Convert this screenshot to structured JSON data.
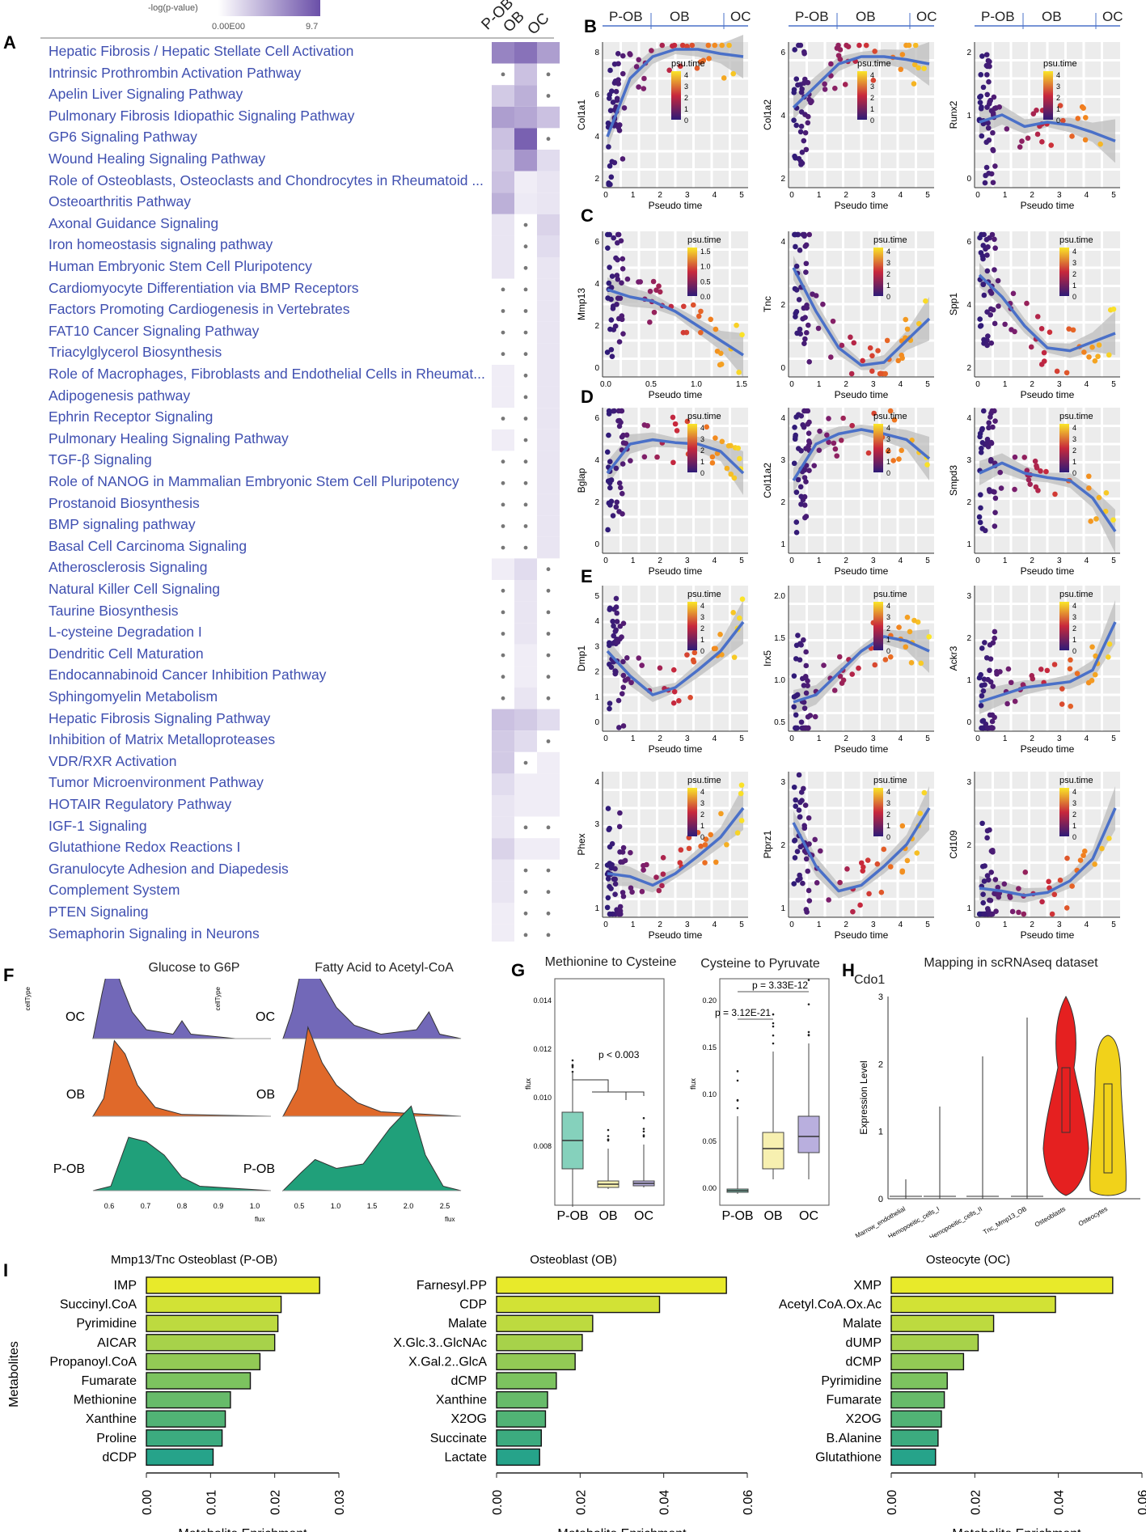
{
  "colors": {
    "purple_dark": "#6a4fa8",
    "purple_light": "#f1ecf7",
    "link": "#3f4fb0",
    "trend": "#4a70c8",
    "band": "#c9c9c9",
    "oc": "#7268b8",
    "ob": "#e0692a",
    "pob": "#20a07a",
    "bar_yellow": "#e8ea2a",
    "bar_green": "#26a38a",
    "violin_red": "#e52020",
    "violin_yellow": "#f1d21a"
  },
  "panel_a": {
    "letter": "A",
    "scale_title": "-log(p-value)",
    "scale_min": "0.00E00",
    "scale_max": "9.7",
    "columns": [
      "P-OB",
      "OB",
      "OC"
    ],
    "pathways": [
      {
        "name": "Hepatic Fibrosis / Hepatic Stellate Cell Activation",
        "v": [
          0.7,
          0.8,
          0.55
        ],
        "dot": [
          0,
          0,
          0
        ]
      },
      {
        "name": "Intrinsic Prothrombin Activation Pathway",
        "v": [
          0,
          0.35,
          0
        ],
        "dot": [
          1,
          0,
          1
        ]
      },
      {
        "name": "Apelin Liver Signaling Pathway",
        "v": [
          0.3,
          0.45,
          0
        ],
        "dot": [
          0,
          0,
          1
        ]
      },
      {
        "name": "Pulmonary Fibrosis Idiopathic Signaling Pathway",
        "v": [
          0.55,
          0.5,
          0.35
        ],
        "dot": [
          0,
          0,
          0
        ]
      },
      {
        "name": "GP6 Signaling Pathway",
        "v": [
          0.35,
          0.9,
          0
        ],
        "dot": [
          0,
          0,
          1
        ]
      },
      {
        "name": "Wound Healing Signaling Pathway",
        "v": [
          0.3,
          0.6,
          0.2
        ],
        "dot": [
          0,
          0,
          0
        ]
      },
      {
        "name": "Role of Osteoblasts, Osteoclasts and Chondrocytes in Rheumatoid ...",
        "v": [
          0.35,
          0.1,
          0.15
        ],
        "dot": [
          0,
          0,
          0
        ]
      },
      {
        "name": "Osteoarthritis Pathway",
        "v": [
          0.45,
          0.12,
          0.15
        ],
        "dot": [
          0,
          0,
          0
        ]
      },
      {
        "name": "Axonal Guidance Signaling",
        "v": [
          0.15,
          0,
          0.25
        ],
        "dot": [
          0,
          1,
          0
        ]
      },
      {
        "name": "Iron homeostasis signaling pathway",
        "v": [
          0.15,
          0,
          0.2
        ],
        "dot": [
          0,
          1,
          0
        ]
      },
      {
        "name": "Human Embryonic Stem Cell Pluripotency",
        "v": [
          0.15,
          0,
          0.15
        ],
        "dot": [
          0,
          1,
          0
        ]
      },
      {
        "name": "Cardiomyocyte Differentiation via BMP Receptors",
        "v": [
          0,
          0,
          0.15
        ],
        "dot": [
          1,
          1,
          0
        ]
      },
      {
        "name": "Factors Promoting Cardiogenesis in Vertebrates",
        "v": [
          0,
          0,
          0.15
        ],
        "dot": [
          1,
          1,
          0
        ]
      },
      {
        "name": "FAT10 Cancer Signaling Pathway",
        "v": [
          0,
          0,
          0.15
        ],
        "dot": [
          1,
          1,
          0
        ]
      },
      {
        "name": "Triacylglycerol Biosynthesis",
        "v": [
          0,
          0,
          0.15
        ],
        "dot": [
          1,
          1,
          0
        ]
      },
      {
        "name": "Role of Macrophages, Fibroblasts and Endothelial Cells in Rheumat...",
        "v": [
          0.1,
          0,
          0.15
        ],
        "dot": [
          0,
          1,
          0
        ]
      },
      {
        "name": "Adipogenesis pathway",
        "v": [
          0.1,
          0,
          0.15
        ],
        "dot": [
          0,
          1,
          0
        ]
      },
      {
        "name": "Ephrin Receptor Signaling",
        "v": [
          0,
          0,
          0.15
        ],
        "dot": [
          1,
          1,
          0
        ]
      },
      {
        "name": "Pulmonary Healing Signaling Pathway",
        "v": [
          0.1,
          0,
          0.15
        ],
        "dot": [
          0,
          1,
          0
        ]
      },
      {
        "name": "TGF-β Signaling",
        "v": [
          0,
          0,
          0.15
        ],
        "dot": [
          1,
          1,
          0
        ]
      },
      {
        "name": "Role of NANOG in Mammalian Embryonic Stem Cell Pluripotency",
        "v": [
          0,
          0,
          0.15
        ],
        "dot": [
          1,
          1,
          0
        ]
      },
      {
        "name": "Prostanoid Biosynthesis",
        "v": [
          0,
          0,
          0.15
        ],
        "dot": [
          1,
          1,
          0
        ]
      },
      {
        "name": "BMP signaling pathway",
        "v": [
          0,
          0,
          0.15
        ],
        "dot": [
          1,
          1,
          0
        ]
      },
      {
        "name": "Basal Cell Carcinoma Signaling",
        "v": [
          0,
          0,
          0.15
        ],
        "dot": [
          1,
          1,
          0
        ]
      },
      {
        "name": "Atherosclerosis Signaling",
        "v": [
          0.1,
          0.2,
          0
        ],
        "dot": [
          0,
          0,
          1
        ]
      },
      {
        "name": "Natural Killer Cell Signaling",
        "v": [
          0,
          0.15,
          0
        ],
        "dot": [
          1,
          0,
          1
        ]
      },
      {
        "name": "Taurine Biosynthesis",
        "v": [
          0,
          0.15,
          0
        ],
        "dot": [
          1,
          0,
          1
        ]
      },
      {
        "name": "L-cysteine Degradation I",
        "v": [
          0,
          0.15,
          0
        ],
        "dot": [
          1,
          0,
          1
        ]
      },
      {
        "name": "Dendritic Cell Maturation",
        "v": [
          0,
          0.1,
          0
        ],
        "dot": [
          1,
          0,
          1
        ]
      },
      {
        "name": "Endocannabinoid Cancer Inhibition Pathway",
        "v": [
          0,
          0.1,
          0
        ],
        "dot": [
          1,
          0,
          1
        ]
      },
      {
        "name": "Sphingomyelin Metabolism",
        "v": [
          0,
          0.15,
          0
        ],
        "dot": [
          1,
          0,
          1
        ]
      },
      {
        "name": "Hepatic Fibrosis Signaling Pathway",
        "v": [
          0.35,
          0.3,
          0.2
        ],
        "dot": [
          0,
          0,
          0
        ]
      },
      {
        "name": "Inhibition of Matrix Metalloproteases",
        "v": [
          0.3,
          0.2,
          0
        ],
        "dot": [
          0,
          0,
          1
        ]
      },
      {
        "name": "VDR/RXR Activation",
        "v": [
          0.3,
          0,
          0.1
        ],
        "dot": [
          0,
          1,
          0
        ]
      },
      {
        "name": "Tumor Microenvironment Pathway",
        "v": [
          0.2,
          0.1,
          0.1
        ],
        "dot": [
          0,
          0,
          0
        ]
      },
      {
        "name": "HOTAIR Regulatory Pathway",
        "v": [
          0.15,
          0.1,
          0.1
        ],
        "dot": [
          0,
          0,
          0
        ]
      },
      {
        "name": "IGF-1 Signaling",
        "v": [
          0.15,
          0,
          0
        ],
        "dot": [
          0,
          1,
          1
        ]
      },
      {
        "name": "Glutathione Redox Reactions I",
        "v": [
          0.25,
          0.1,
          0.1
        ],
        "dot": [
          0,
          0,
          0
        ]
      },
      {
        "name": "Granulocyte Adhesion and Diapedesis",
        "v": [
          0.15,
          0,
          0
        ],
        "dot": [
          0,
          1,
          1
        ]
      },
      {
        "name": "Complement System",
        "v": [
          0.15,
          0,
          0
        ],
        "dot": [
          0,
          1,
          1
        ]
      },
      {
        "name": "PTEN Signaling",
        "v": [
          0.1,
          0,
          0
        ],
        "dot": [
          0,
          1,
          1
        ]
      },
      {
        "name": "Semaphorin Signaling in Neurons",
        "v": [
          0.1,
          0,
          0
        ],
        "dot": [
          0,
          1,
          1
        ]
      }
    ]
  },
  "panel_b_e": {
    "letters": [
      "B",
      "C",
      "D",
      "E"
    ],
    "stage_labels": [
      "P-OB",
      "OB",
      "OC"
    ],
    "xlabel": "Pseudo time",
    "legend_title": "psu.time",
    "legend_ticks": [
      "4",
      "3",
      "2",
      "1",
      "0"
    ],
    "legend_ticks_c1": [
      "1.5",
      "1.0",
      "0.5",
      "0.0"
    ],
    "rows": [
      [
        {
          "gene": "Col1a1",
          "yticks": [
            "8",
            "6",
            "4",
            "2"
          ],
          "xticks": [
            "0",
            "1",
            "2",
            "3",
            "4",
            "5"
          ]
        },
        {
          "gene": "Col1a2",
          "yticks": [
            "6",
            "4",
            "2"
          ],
          "xticks": [
            "0",
            "1",
            "2",
            "3",
            "4",
            "5"
          ]
        },
        {
          "gene": "Runx2",
          "yticks": [
            "2",
            "1",
            "0"
          ],
          "xticks": [
            "0",
            "1",
            "2",
            "3",
            "4",
            "5"
          ]
        }
      ],
      [
        {
          "gene": "Mmp13",
          "yticks": [
            "6",
            "4",
            "2",
            "0"
          ],
          "xticks": [
            "0.0",
            "0.5",
            "1.0",
            "1.5"
          ]
        },
        {
          "gene": "Tnc",
          "yticks": [
            "4",
            "2",
            "0"
          ],
          "xticks": [
            "0",
            "1",
            "2",
            "3",
            "4",
            "5"
          ]
        },
        {
          "gene": "Spp1",
          "yticks": [
            "6",
            "4",
            "2"
          ],
          "xticks": [
            "0",
            "1",
            "2",
            "3",
            "4",
            "5"
          ]
        }
      ],
      [
        {
          "gene": "Bglap",
          "yticks": [
            "6",
            "4",
            "2",
            "0"
          ],
          "xticks": [
            "0",
            "1",
            "2",
            "3",
            "4",
            "5"
          ]
        },
        {
          "gene": "Col11a2",
          "yticks": [
            "4",
            "3",
            "2",
            "1"
          ],
          "xticks": [
            "0",
            "1",
            "2",
            "3",
            "4",
            "5"
          ]
        },
        {
          "gene": "Smpd3",
          "yticks": [
            "4",
            "3",
            "2",
            "1"
          ],
          "xticks": [
            "0",
            "1",
            "2",
            "3",
            "4",
            "5"
          ]
        }
      ],
      [
        {
          "gene": "Dmp1",
          "yticks": [
            "5",
            "4",
            "3",
            "2",
            "1",
            "0"
          ],
          "xticks": [
            "0",
            "1",
            "2",
            "3",
            "4",
            "5"
          ]
        },
        {
          "gene": "Irx5",
          "yticks": [
            "2.0",
            "1.5",
            "1.0",
            "0.5"
          ],
          "xticks": [
            "0",
            "1",
            "2",
            "3",
            "4",
            "5"
          ]
        },
        {
          "gene": "Ackr3",
          "yticks": [
            "3",
            "2",
            "1",
            "0"
          ],
          "xticks": [
            "0",
            "1",
            "2",
            "3",
            "4",
            "5"
          ]
        }
      ],
      [
        {
          "gene": "Phex",
          "yticks": [
            "4",
            "3",
            "2",
            "1"
          ],
          "xticks": [
            "0",
            "1",
            "2",
            "3",
            "4",
            "5"
          ]
        },
        {
          "gene": "Ptprz1",
          "yticks": [
            "3",
            "2",
            "1"
          ],
          "xticks": [
            "0",
            "1",
            "2",
            "3",
            "4",
            "5"
          ]
        },
        {
          "gene": "Cd109",
          "yticks": [
            "3",
            "2",
            "1"
          ],
          "xticks": [
            "0",
            "1",
            "2",
            "3",
            "4",
            "5"
          ]
        }
      ]
    ]
  },
  "panel_f": {
    "letter": "F",
    "titles": [
      "Glucose to G6P",
      "Fatty Acid to Acetyl-CoA"
    ],
    "groups": [
      "OC",
      "OB",
      "P-OB"
    ],
    "ylabel": "cellType",
    "xlabel": "flux",
    "xticks_1": [
      "0.6",
      "0.7",
      "0.8",
      "0.9",
      "1.0"
    ],
    "xticks_2": [
      "0.5",
      "1.0",
      "1.5",
      "2.0",
      "2.5"
    ]
  },
  "panel_g": {
    "letter": "G",
    "titles": [
      "Methionine to Cysteine",
      "Cysteine to Pyruvate"
    ],
    "ylabel": "flux",
    "groups": [
      "P-OB",
      "OB",
      "OC"
    ],
    "pvalue_1": "p < 0.003",
    "pvalue_2a": "p = 3.33E-12",
    "pvalue_2b": "p = 3.12E-21",
    "yticks_1": [
      "0.014",
      "0.012",
      "0.010",
      "0.008"
    ],
    "yticks_2": [
      "0.20",
      "0.15",
      "0.10",
      "0.05",
      "0.00"
    ]
  },
  "panel_h": {
    "letter": "H",
    "title": "Mapping in scRNAseq dataset",
    "gene": "Cdo1",
    "ylabel": "Expression Level",
    "yticks": [
      "3",
      "2",
      "1",
      "0"
    ],
    "categories": [
      "Marrow_endothelial",
      "Hemopoeitic_cells_I",
      "Hemopoeitic_cells_II",
      "Tnc_Mmp13_OB",
      "Osteoblasts",
      "Osteocytes"
    ]
  },
  "chart_data": [
    {
      "type": "bar",
      "title": "Mmp13/Tnc Osteoblast (P-OB)",
      "xlabel": "Metabolite Enrichment",
      "ylabel": "Metabolites",
      "categories": [
        "IMP",
        "Succinyl.CoA",
        "Pyrimidine",
        "AICAR",
        "Propanoyl.CoA",
        "Fumarate",
        "Methionine",
        "Xanthine",
        "Proline",
        "dCDP"
      ],
      "values": [
        0.027,
        0.021,
        0.0205,
        0.02,
        0.0177,
        0.0162,
        0.0131,
        0.0123,
        0.0118,
        0.0104
      ],
      "xlim": [
        0,
        0.03
      ],
      "xticks": [
        "0.00",
        "0.01",
        "0.02",
        "0.03"
      ]
    },
    {
      "type": "bar",
      "title": "Osteoblast (OB)",
      "xlabel": "Metabolite Enrichment",
      "ylabel": "",
      "categories": [
        "Farnesyl.PP",
        "CDP",
        "Malate",
        "X.Glc.3..GlcNAc",
        "X.Gal.2..GlcA",
        "dCMP",
        "Xanthine",
        "X2OG",
        "Succinate",
        "Lactate"
      ],
      "values": [
        0.055,
        0.039,
        0.023,
        0.0205,
        0.0188,
        0.0143,
        0.0122,
        0.0117,
        0.0107,
        0.0103
      ],
      "xlim": [
        0,
        0.06
      ],
      "xticks": [
        "0.00",
        "0.02",
        "0.04",
        "0.06"
      ]
    },
    {
      "type": "bar",
      "title": "Osteocyte (OC)",
      "xlabel": "Metabolite Enrichment",
      "ylabel": "",
      "categories": [
        "XMP",
        "Acetyl.CoA.Ox.Ac",
        "Malate",
        "dUMP",
        "dCMP",
        "Pyrimidine",
        "Fumarate",
        "X2OG",
        "B.Alanine",
        "Glutathione"
      ],
      "values": [
        0.053,
        0.0393,
        0.0245,
        0.0208,
        0.0173,
        0.0134,
        0.0127,
        0.012,
        0.0112,
        0.0106
      ],
      "xlim": [
        0,
        0.06
      ],
      "xticks": [
        "0.00",
        "0.02",
        "0.04",
        "0.06"
      ]
    }
  ],
  "panel_i": {
    "letter": "I"
  }
}
